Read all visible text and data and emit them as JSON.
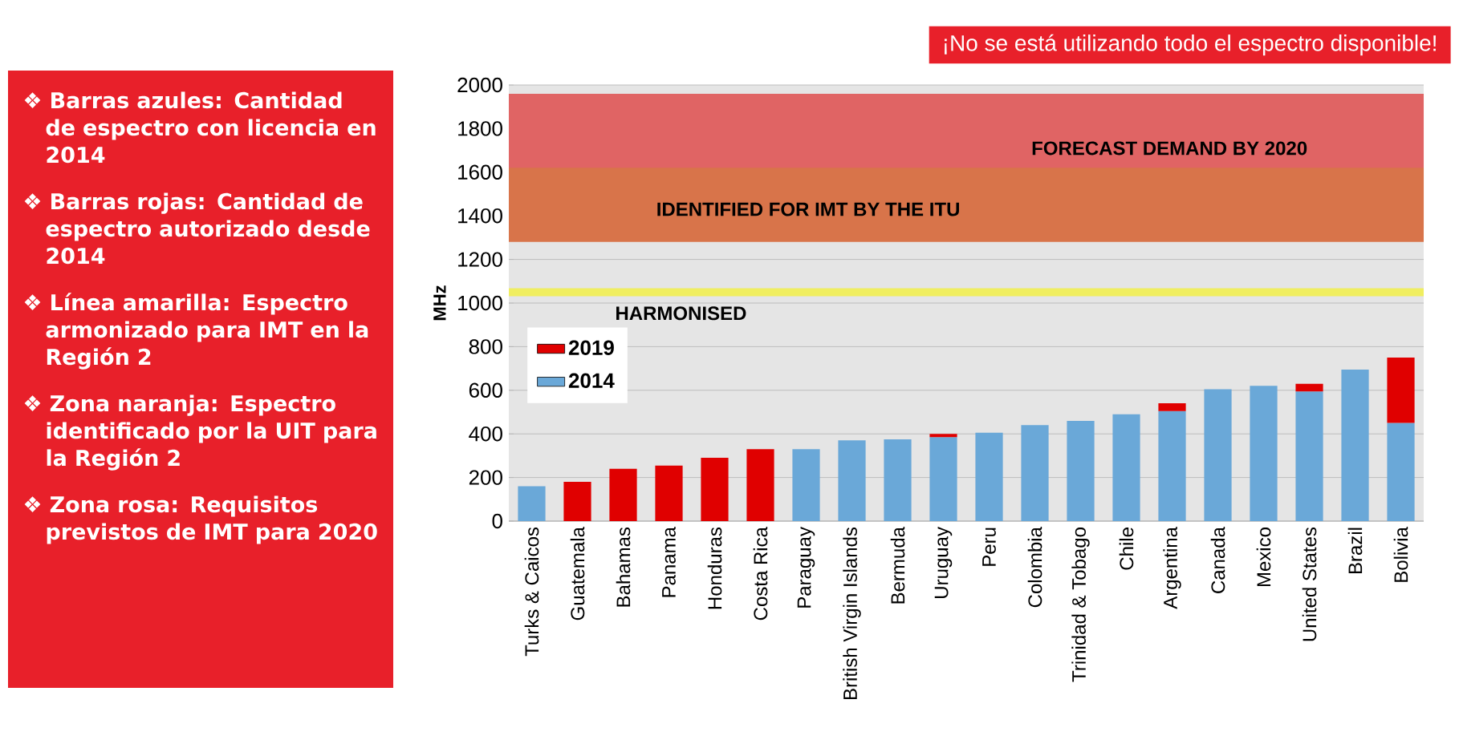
{
  "chart_data": [
    {
      "type": "other",
      "annotations": [
        "❖ Barras azules: Cantidad de espectro con licencia en 2014",
        "❖ Barras rojas: Cantidad de espectro autorizado desde 2014",
        "❖ Línea amarilla: Espectro armonizado para IMT en la Región 2",
        "❖ Zona naranja: Espectro identificado por la UIT para la Región 2",
        "❖ Zona rosa: Requisitos previstos de IMT para 2020"
      ]
    },
    {
      "type": "bar",
      "title": "¡No se está utilizando todo el espectro disponible!",
      "ylabel": "MHz",
      "stacked": true,
      "categories": [
        "Turks & Caicos",
        "Guatemala",
        "Bahamas",
        "Panama",
        "Honduras",
        "Costa Rica",
        "Paraguay",
        "British Virgin Islands",
        "Bermuda",
        "Uruguay",
        "Peru",
        "Colombia",
        "Trinidad & Tobago",
        "Chile",
        "Argentina",
        "Canada",
        "Mexico",
        "United States",
        "Brazil",
        "Bolivia"
      ],
      "series": [
        {
          "name": "2014",
          "color": "#6aa8d8",
          "values": [
            160,
            null,
            null,
            null,
            null,
            null,
            330,
            370,
            375,
            385,
            405,
            440,
            460,
            490,
            505,
            605,
            620,
            595,
            695,
            450
          ]
        },
        {
          "name": "2019",
          "color": "#e00000",
          "values": [
            null,
            180,
            240,
            255,
            290,
            330,
            null,
            null,
            null,
            15,
            null,
            null,
            null,
            null,
            35,
            null,
            null,
            35,
            null,
            300
          ]
        }
      ],
      "ylim": [
        0,
        2000
      ],
      "yticks": [
        0,
        200,
        400,
        600,
        800,
        1000,
        1200,
        1400,
        1600,
        1800,
        2000
      ],
      "grid": "y",
      "legend": "left",
      "bands": [
        {
          "axis": "y",
          "from": 1340,
          "to": 1960,
          "label": "FORECAST DEMAND BY 2020",
          "color": "#e06464"
        },
        {
          "axis": "y",
          "from": 1280,
          "to": 1620,
          "label": "IDENTIFIED FOR IMT BY THE ITU",
          "color": "#d8744a"
        }
      ],
      "ref_lines": [
        {
          "axis": "y",
          "value": 1050,
          "label": "HARMONISED",
          "color": "#f0ee60"
        }
      ]
    }
  ]
}
